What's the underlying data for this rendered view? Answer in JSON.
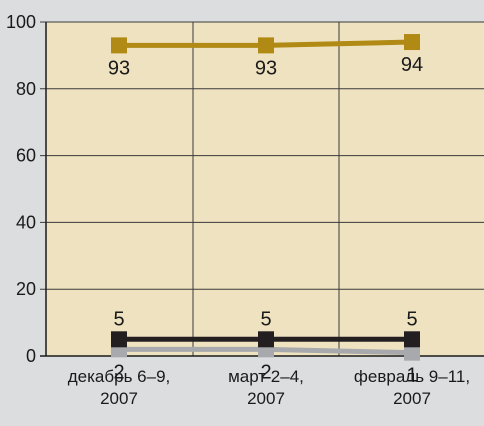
{
  "chart_data": {
    "type": "line",
    "categories": [
      [
        "декабрь 6–9,",
        "2007"
      ],
      [
        "март 2–4,",
        "2007"
      ],
      [
        "февраль 9–11,",
        "2007"
      ]
    ],
    "ylim": [
      0,
      100
    ],
    "yticks": [
      0,
      20,
      40,
      60,
      80,
      100
    ],
    "grid": true,
    "legend": "none",
    "plot_background": "#efe2c0",
    "series": [
      {
        "values": [
          93,
          93,
          94
        ],
        "color": "#b08a14",
        "labels": [
          "93",
          "93",
          "94"
        ],
        "label_position": "below"
      },
      {
        "values": [
          5,
          5,
          5
        ],
        "color": "#231f20",
        "labels": [
          "5",
          "5",
          "5"
        ],
        "label_position": "above"
      },
      {
        "values": [
          2,
          2,
          1
        ],
        "color": "#a7a9ac",
        "labels": [
          "2",
          "2",
          "1"
        ],
        "label_position": "below"
      }
    ]
  }
}
